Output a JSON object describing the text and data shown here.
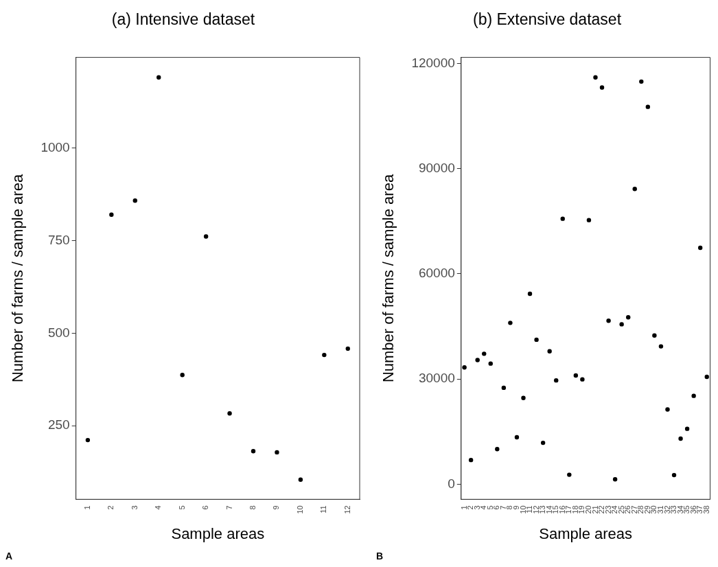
{
  "chart_data": [
    {
      "type": "scatter",
      "title": "(a) Intensive dataset",
      "xlabel": "Sample areas",
      "ylabel": "Number of farms / sample area",
      "categories": [
        "1",
        "2",
        "3",
        "4",
        "5",
        "6",
        "7",
        "8",
        "9",
        "10",
        "11",
        "12"
      ],
      "series": [
        {
          "color": "#000000",
          "values": [
            211,
            820,
            858,
            1191,
            387,
            761,
            283,
            181,
            178,
            104,
            441,
            458
          ]
        }
      ],
      "ylim": [
        51,
        1245
      ],
      "yticks": [
        250,
        500,
        750,
        1000
      ],
      "grid": false,
      "legend": false,
      "marker": "circle",
      "annotations": [
        "A"
      ]
    },
    {
      "type": "scatter",
      "title": "(b) Extensive dataset",
      "xlabel": "Sample areas",
      "ylabel": "Number of farms / sample area",
      "categories": [
        "1",
        "2",
        "3",
        "4",
        "5",
        "6",
        "7",
        "8",
        "9",
        "10",
        "11",
        "12",
        "13",
        "14",
        "15",
        "16",
        "17",
        "18",
        "19",
        "20",
        "21",
        "22",
        "23",
        "24",
        "25",
        "26",
        "27",
        "28",
        "29",
        "30",
        "31",
        "32",
        "33",
        "34",
        "35",
        "36",
        "37",
        "38"
      ],
      "series": [
        {
          "color": "#000000",
          "values": [
            33300,
            6900,
            35400,
            37200,
            34400,
            10000,
            27500,
            46000,
            13400,
            24600,
            54300,
            41200,
            11800,
            37900,
            29600,
            75700,
            2700,
            31000,
            29900,
            75300,
            116000,
            113100,
            46600,
            1400,
            45600,
            47600,
            84200,
            114800,
            107600,
            42400,
            39300,
            21300,
            2600,
            13000,
            15800,
            25200,
            67400,
            30600
          ]
        }
      ],
      "ylim": [
        -4300,
        121700
      ],
      "yticks": [
        0,
        30000,
        60000,
        90000,
        120000
      ],
      "grid": false,
      "legend": false,
      "marker": "circle",
      "annotations": [
        "B"
      ]
    }
  ]
}
